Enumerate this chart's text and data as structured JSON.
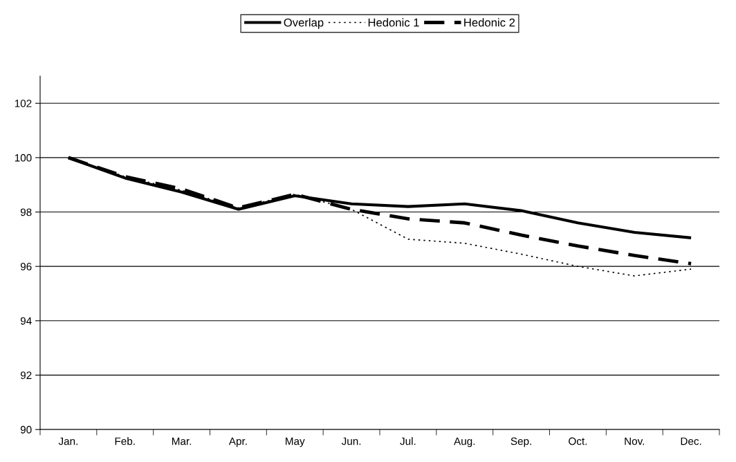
{
  "chart_data": {
    "type": "line",
    "categories": [
      "Jan.",
      "Feb.",
      "Mar.",
      "Apr.",
      "May",
      "Jun.",
      "Jul.",
      "Aug.",
      "Sep.",
      "Oct.",
      "Nov.",
      "Dec."
    ],
    "series": [
      {
        "name": "Overlap",
        "color": "#000000",
        "line_style": "solid",
        "values": [
          100,
          99.25,
          98.73,
          98.1,
          98.6,
          98.3,
          98.2,
          98.3,
          98.05,
          97.6,
          97.25,
          97.05
        ]
      },
      {
        "name": "Hedonic 1",
        "color": "#000000",
        "line_style": "dotted",
        "values": [
          100,
          99.3,
          98.8,
          98.15,
          98.65,
          98.1,
          97.0,
          96.85,
          96.45,
          96.0,
          95.65,
          95.9
        ]
      },
      {
        "name": "Hedonic 2",
        "color": "#000000",
        "line_style": "dashed",
        "values": [
          100,
          99.3,
          98.85,
          98.15,
          98.65,
          98.1,
          97.75,
          97.6,
          97.15,
          96.75,
          96.4,
          96.1
        ]
      }
    ],
    "ylim": [
      90,
      103
    ],
    "yticks": [
      90,
      92,
      94,
      96,
      98,
      100,
      102
    ],
    "grid": "y",
    "legend": "top",
    "marker": "none"
  }
}
